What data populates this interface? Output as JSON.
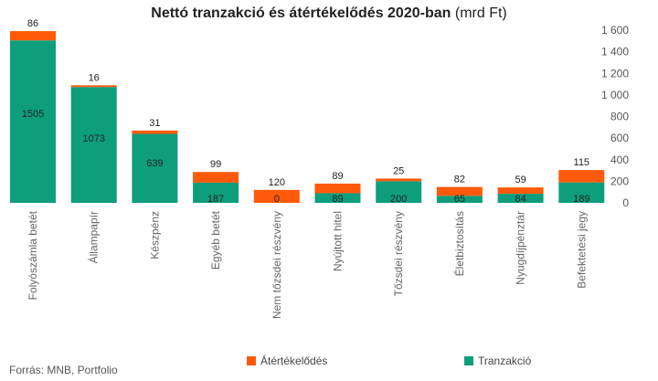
{
  "title_bold": "Nettó tranzakció és átértékelődés 2020-ban",
  "title_unit": "(mrd Ft)",
  "source": "Forrás: MNB, Portfolio",
  "colors": {
    "tranzakcio": "#0E9E7C",
    "atertekelodes": "#FF5A0A"
  },
  "chart_data": {
    "type": "bar",
    "stacked": true,
    "title": "Nettó tranzakció és átértékelődés 2020-ban (mrd Ft)",
    "categories": [
      "Folyószámla betét",
      "Állampapír",
      "Készpénz",
      "Egyéb betét",
      "Nem tőzsdei részvény",
      "Nyújtott hitel",
      "Tőzsdei részvény",
      "Életbiztosítás",
      "Nyugdíjpénztár",
      "Befektetési jegy"
    ],
    "series": [
      {
        "name": "Tranzakció",
        "values": [
          1505,
          1073,
          639,
          187,
          0,
          89,
          200,
          65,
          84,
          189
        ]
      },
      {
        "name": "Átértékelődés",
        "values": [
          86,
          16,
          31,
          99,
          120,
          89,
          25,
          82,
          59,
          115
        ]
      }
    ],
    "yticks": [
      "0",
      "200",
      "400",
      "600",
      "800",
      "1 000",
      "1 200",
      "1 400",
      "1 600"
    ],
    "ylim": [
      0,
      1600
    ],
    "y_axis_side": "right",
    "legend_position": "bottom"
  }
}
